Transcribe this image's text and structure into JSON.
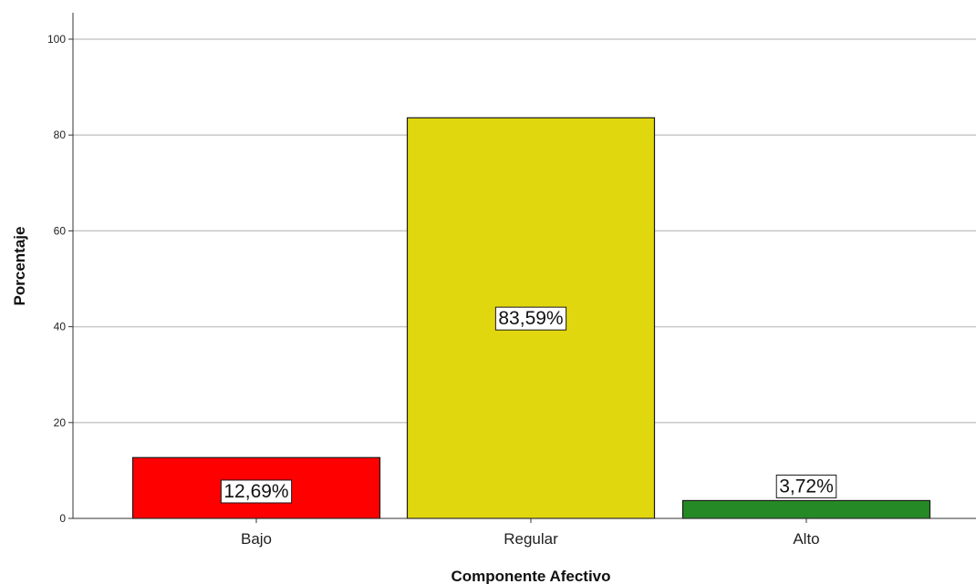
{
  "chart_data": {
    "type": "bar",
    "categories": [
      "Bajo",
      "Regular",
      "Alto"
    ],
    "values": [
      12.69,
      83.59,
      3.72
    ],
    "data_labels": [
      "12,69%",
      "83,59%",
      "3,72%"
    ],
    "colors": [
      "#ff0000",
      "#e1d70e",
      "#258a25"
    ],
    "xlabel": "Componente Afectivo",
    "ylabel": "Porcentaje",
    "ylim": [
      0,
      105
    ],
    "yticks": [
      0,
      20,
      40,
      60,
      80,
      100
    ],
    "ytick_labels": [
      "0",
      "20",
      "40",
      "60",
      "80",
      "100"
    ],
    "grid": true,
    "legend": "none"
  }
}
